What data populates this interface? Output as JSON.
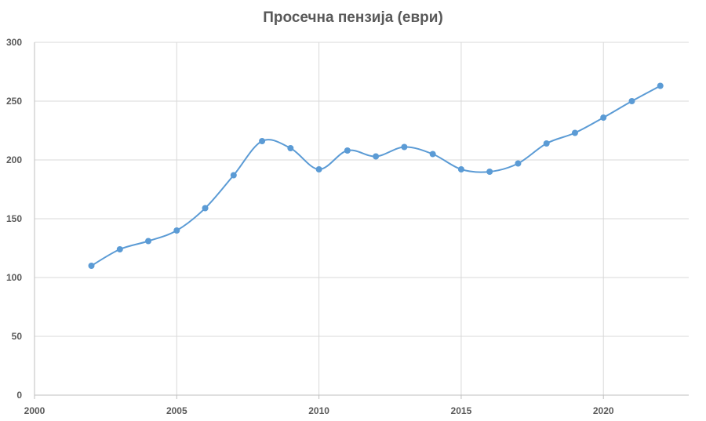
{
  "chart_data": {
    "type": "line",
    "title": "Просечна пензија (еври)",
    "xlabel": "",
    "ylabel": "",
    "xlim": [
      2000,
      2023
    ],
    "ylim": [
      0,
      300
    ],
    "x_ticks": [
      "2000",
      "2005",
      "2010",
      "2015",
      "2020"
    ],
    "y_ticks": [
      "0",
      "50",
      "100",
      "150",
      "200",
      "250",
      "300"
    ],
    "grid": true,
    "smooth": true,
    "line_color": "#5b9bd5",
    "series": [
      {
        "x": [
          2002,
          2003,
          2004,
          2005,
          2006,
          2007,
          2008,
          2009,
          2010,
          2011,
          2012,
          2013,
          2014,
          2015,
          2016,
          2017,
          2018,
          2019,
          2020,
          2021,
          2022
        ],
        "values": [
          110,
          124,
          131,
          140,
          159,
          187,
          216,
          210,
          192,
          208,
          203,
          211,
          205,
          192,
          190,
          197,
          214,
          223,
          236,
          250,
          263
        ]
      }
    ]
  }
}
